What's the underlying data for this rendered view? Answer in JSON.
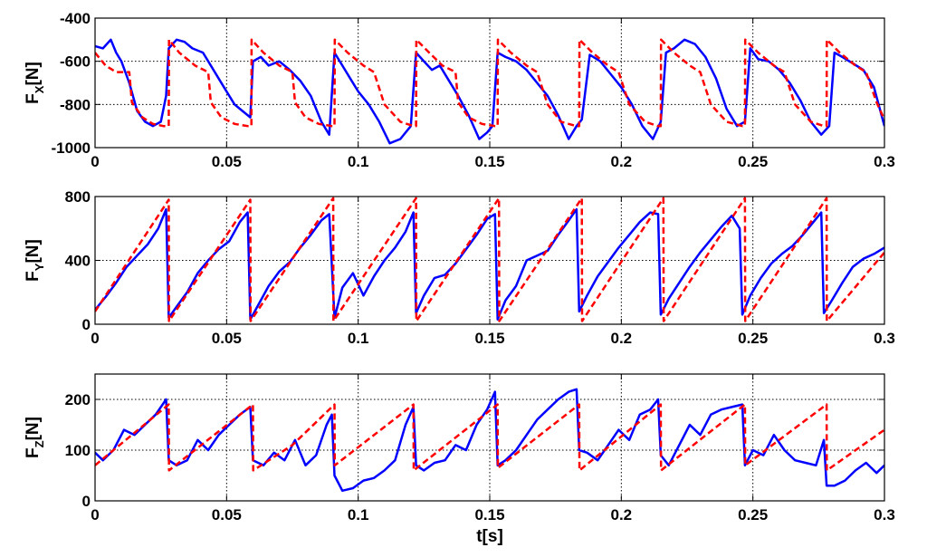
{
  "chart_data": [
    {
      "type": "line",
      "ylabel": "F",
      "ylabel_subscript": "X",
      "ylabel_unit": "[N]",
      "xlim": [
        0,
        0.3
      ],
      "ylim": [
        -1000,
        -400
      ],
      "xticks": [
        0,
        0.05,
        0.1,
        0.15,
        0.2,
        0.25,
        0.3
      ],
      "xtick_labels": [
        "0",
        "0.05",
        "0.1",
        "0.15",
        "0.2",
        "0.25",
        "0.3"
      ],
      "yticks": [
        -1000,
        -800,
        -600,
        -400
      ],
      "ytick_labels": [
        "-1000",
        "-800",
        "-600",
        "-400"
      ],
      "grid": true,
      "series": [
        {
          "style": "solid",
          "color": "#0000ff",
          "x": [
            0,
            0.003,
            0.006,
            0.008,
            0.01,
            0.013,
            0.016,
            0.019,
            0.022,
            0.025,
            0.027,
            0.028,
            0.031,
            0.034,
            0.037,
            0.041,
            0.045,
            0.049,
            0.053,
            0.056,
            0.059,
            0.06,
            0.063,
            0.066,
            0.07,
            0.074,
            0.078,
            0.082,
            0.086,
            0.089,
            0.091,
            0.094,
            0.097,
            0.1,
            0.104,
            0.108,
            0.112,
            0.116,
            0.12,
            0.122,
            0.125,
            0.128,
            0.131,
            0.134,
            0.138,
            0.142,
            0.146,
            0.149,
            0.151,
            0.153,
            0.156,
            0.16,
            0.164,
            0.168,
            0.172,
            0.176,
            0.18,
            0.183,
            0.185,
            0.188,
            0.192,
            0.196,
            0.2,
            0.204,
            0.208,
            0.212,
            0.215,
            0.217,
            0.22,
            0.224,
            0.228,
            0.232,
            0.236,
            0.24,
            0.244,
            0.247,
            0.249,
            0.252,
            0.256,
            0.26,
            0.264,
            0.268,
            0.272,
            0.276,
            0.279,
            0.281,
            0.284,
            0.288,
            0.292,
            0.296,
            0.3
          ],
          "y": [
            -530,
            -540,
            -500,
            -560,
            -600,
            -700,
            -830,
            -880,
            -900,
            -880,
            -760,
            -540,
            -500,
            -510,
            -540,
            -560,
            -640,
            -720,
            -800,
            -830,
            -860,
            -600,
            -580,
            -620,
            -600,
            -640,
            -690,
            -760,
            -880,
            -940,
            -560,
            -620,
            -680,
            -740,
            -800,
            -880,
            -980,
            -960,
            -900,
            -560,
            -600,
            -640,
            -620,
            -680,
            -760,
            -850,
            -960,
            -930,
            -900,
            -560,
            -580,
            -600,
            -640,
            -700,
            -760,
            -850,
            -960,
            -900,
            -870,
            -570,
            -600,
            -660,
            -720,
            -800,
            -900,
            -960,
            -880,
            -560,
            -540,
            -500,
            -520,
            -580,
            -680,
            -820,
            -900,
            -880,
            -540,
            -590,
            -600,
            -640,
            -700,
            -780,
            -880,
            -940,
            -900,
            -560,
            -580,
            -610,
            -640,
            -720,
            -900
          ]
        },
        {
          "style": "dashed",
          "color": "#ff0000",
          "x": [
            0,
            0.004,
            0.008,
            0.013,
            0.014,
            0.018,
            0.022,
            0.026,
            0.028,
            0.0281,
            0.032,
            0.038,
            0.043,
            0.044,
            0.048,
            0.053,
            0.058,
            0.0594,
            0.0595,
            0.064,
            0.07,
            0.075,
            0.076,
            0.08,
            0.085,
            0.09,
            0.091,
            0.0911,
            0.096,
            0.102,
            0.106,
            0.11,
            0.116,
            0.121,
            0.122,
            0.1221,
            0.127,
            0.132,
            0.137,
            0.138,
            0.142,
            0.147,
            0.152,
            0.153,
            0.1531,
            0.158,
            0.164,
            0.168,
            0.172,
            0.177,
            0.183,
            0.184,
            0.1841,
            0.189,
            0.195,
            0.199,
            0.203,
            0.209,
            0.214,
            0.215,
            0.2151,
            0.22,
            0.226,
            0.23,
            0.234,
            0.24,
            0.246,
            0.247,
            0.2471,
            0.252,
            0.258,
            0.262,
            0.266,
            0.272,
            0.277,
            0.278,
            0.2781,
            0.283,
            0.289,
            0.293,
            0.297,
            0.3
          ],
          "y": [
            -560,
            -620,
            -650,
            -650,
            -790,
            -860,
            -890,
            -900,
            -900,
            -500,
            -560,
            -620,
            -650,
            -790,
            -860,
            -890,
            -900,
            -900,
            -500,
            -560,
            -620,
            -650,
            -790,
            -860,
            -890,
            -900,
            -900,
            -500,
            -560,
            -620,
            -650,
            -800,
            -880,
            -900,
            -900,
            -500,
            -560,
            -620,
            -650,
            -790,
            -860,
            -890,
            -900,
            -900,
            -500,
            -560,
            -620,
            -650,
            -800,
            -880,
            -900,
            -900,
            -500,
            -560,
            -620,
            -650,
            -800,
            -880,
            -900,
            -900,
            -500,
            -560,
            -620,
            -650,
            -800,
            -880,
            -900,
            -900,
            -500,
            -560,
            -620,
            -650,
            -800,
            -880,
            -900,
            -900,
            -500,
            -560,
            -620,
            -650,
            -790,
            -870
          ]
        }
      ]
    },
    {
      "type": "line",
      "ylabel": "F",
      "ylabel_subscript": "Y",
      "ylabel_unit": "[N]",
      "xlim": [
        0,
        0.3
      ],
      "ylim": [
        0,
        800
      ],
      "xticks": [
        0,
        0.05,
        0.1,
        0.15,
        0.2,
        0.25,
        0.3
      ],
      "xtick_labels": [
        "0",
        "0.05",
        "0.1",
        "0.15",
        "0.2",
        "0.25",
        "0.3"
      ],
      "yticks": [
        0,
        400,
        800
      ],
      "ytick_labels": [
        "0",
        "400",
        "800"
      ],
      "grid": true,
      "series": [
        {
          "style": "solid",
          "color": "#0000ff",
          "x": [
            0,
            0.004,
            0.008,
            0.012,
            0.016,
            0.02,
            0.024,
            0.027,
            0.028,
            0.031,
            0.035,
            0.039,
            0.043,
            0.047,
            0.051,
            0.055,
            0.058,
            0.059,
            0.062,
            0.066,
            0.07,
            0.074,
            0.078,
            0.082,
            0.086,
            0.089,
            0.091,
            0.094,
            0.098,
            0.102,
            0.106,
            0.11,
            0.114,
            0.118,
            0.121,
            0.122,
            0.125,
            0.129,
            0.133,
            0.137,
            0.141,
            0.145,
            0.149,
            0.152,
            0.153,
            0.156,
            0.16,
            0.164,
            0.168,
            0.172,
            0.176,
            0.18,
            0.183,
            0.184,
            0.187,
            0.191,
            0.195,
            0.199,
            0.203,
            0.207,
            0.211,
            0.214,
            0.215,
            0.218,
            0.222,
            0.226,
            0.23,
            0.234,
            0.238,
            0.242,
            0.245,
            0.246,
            0.249,
            0.253,
            0.257,
            0.261,
            0.265,
            0.269,
            0.273,
            0.276,
            0.277,
            0.28,
            0.284,
            0.288,
            0.292,
            0.296,
            0.3
          ],
          "y": [
            90,
            170,
            260,
            360,
            430,
            500,
            600,
            720,
            40,
            110,
            200,
            320,
            400,
            470,
            520,
            640,
            700,
            30,
            120,
            240,
            330,
            390,
            480,
            560,
            650,
            690,
            40,
            230,
            320,
            180,
            300,
            400,
            480,
            580,
            700,
            70,
            180,
            290,
            310,
            380,
            470,
            560,
            660,
            690,
            30,
            150,
            240,
            400,
            430,
            460,
            560,
            650,
            720,
            80,
            180,
            300,
            390,
            480,
            560,
            640,
            700,
            690,
            60,
            160,
            260,
            360,
            450,
            530,
            610,
            680,
            600,
            60,
            180,
            290,
            380,
            440,
            490,
            560,
            640,
            700,
            70,
            150,
            260,
            360,
            410,
            440,
            480
          ]
        },
        {
          "style": "dashed",
          "color": "#ff0000",
          "x": [
            0,
            0.028,
            0.0281,
            0.059,
            0.0591,
            0.0905,
            0.0906,
            0.122,
            0.1221,
            0.1535,
            0.1536,
            0.185,
            0.1851,
            0.216,
            0.2161,
            0.247,
            0.2471,
            0.278,
            0.2781,
            0.3
          ],
          "y": [
            80,
            780,
            20,
            780,
            20,
            790,
            20,
            790,
            20,
            790,
            20,
            790,
            20,
            790,
            20,
            790,
            20,
            790,
            20,
            450
          ]
        }
      ]
    },
    {
      "type": "line",
      "ylabel": "F",
      "ylabel_subscript": "Z",
      "ylabel_unit": "[N]",
      "xlabel": "t[s]",
      "xlim": [
        0,
        0.3
      ],
      "ylim": [
        0,
        250
      ],
      "xticks": [
        0,
        0.05,
        0.1,
        0.15,
        0.2,
        0.25,
        0.3
      ],
      "xtick_labels": [
        "0",
        "0.05",
        "0.1",
        "0.15",
        "0.2",
        "0.25",
        "0.3"
      ],
      "yticks": [
        0,
        100,
        200
      ],
      "ytick_labels": [
        "0",
        "100",
        "200"
      ],
      "grid": true,
      "series": [
        {
          "style": "solid",
          "color": "#0000ff",
          "x": [
            0,
            0.003,
            0.007,
            0.011,
            0.015,
            0.019,
            0.023,
            0.027,
            0.028,
            0.031,
            0.035,
            0.039,
            0.043,
            0.047,
            0.051,
            0.055,
            0.059,
            0.06,
            0.064,
            0.068,
            0.072,
            0.076,
            0.08,
            0.084,
            0.088,
            0.09,
            0.091,
            0.094,
            0.098,
            0.102,
            0.106,
            0.11,
            0.114,
            0.118,
            0.121,
            0.122,
            0.125,
            0.129,
            0.133,
            0.137,
            0.141,
            0.145,
            0.149,
            0.152,
            0.153,
            0.156,
            0.16,
            0.164,
            0.168,
            0.172,
            0.176,
            0.18,
            0.183,
            0.184,
            0.187,
            0.191,
            0.195,
            0.199,
            0.203,
            0.207,
            0.211,
            0.214,
            0.215,
            0.218,
            0.222,
            0.226,
            0.23,
            0.234,
            0.238,
            0.242,
            0.246,
            0.247,
            0.25,
            0.254,
            0.258,
            0.262,
            0.266,
            0.27,
            0.274,
            0.277,
            0.278,
            0.281,
            0.285,
            0.289,
            0.293,
            0.297,
            0.3
          ],
          "y": [
            95,
            80,
            100,
            140,
            130,
            150,
            170,
            200,
            80,
            70,
            80,
            120,
            100,
            130,
            150,
            170,
            185,
            80,
            70,
            95,
            80,
            120,
            70,
            90,
            150,
            170,
            50,
            20,
            25,
            40,
            45,
            60,
            80,
            150,
            185,
            70,
            60,
            75,
            80,
            110,
            100,
            150,
            180,
            215,
            70,
            80,
            100,
            130,
            160,
            180,
            200,
            215,
            220,
            100,
            95,
            80,
            110,
            140,
            120,
            170,
            180,
            200,
            90,
            70,
            110,
            150,
            130,
            170,
            180,
            185,
            190,
            70,
            100,
            90,
            130,
            100,
            80,
            75,
            70,
            120,
            30,
            30,
            40,
            60,
            75,
            55,
            70
          ]
        },
        {
          "style": "dashed",
          "color": "#ff0000",
          "x": [
            0,
            0.028,
            0.0281,
            0.06,
            0.0601,
            0.075,
            0.091,
            0.0911,
            0.121,
            0.1211,
            0.153,
            0.1531,
            0.184,
            0.1841,
            0.215,
            0.2151,
            0.247,
            0.2471,
            0.278,
            0.2781,
            0.3
          ],
          "y": [
            70,
            190,
            60,
            190,
            60,
            110,
            190,
            70,
            190,
            60,
            190,
            65,
            190,
            60,
            190,
            60,
            190,
            70,
            190,
            60,
            140
          ]
        }
      ]
    }
  ]
}
